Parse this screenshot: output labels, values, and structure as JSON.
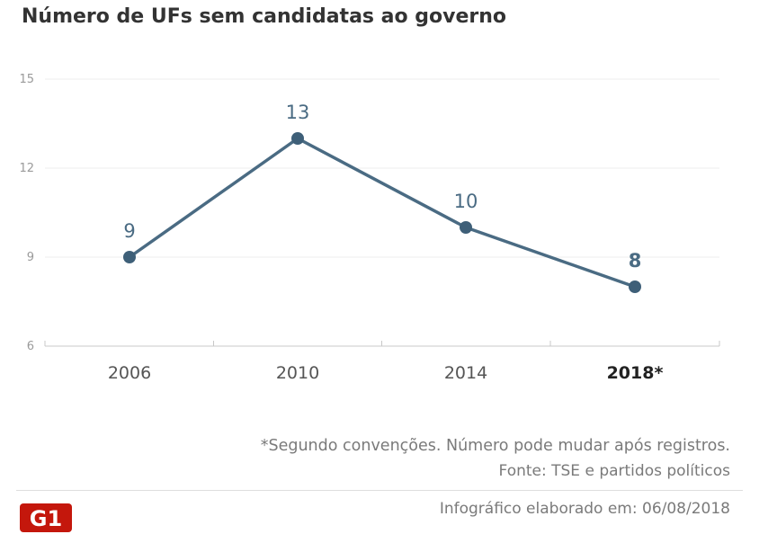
{
  "title": "Número de UFs sem candidatas ao governo",
  "chart_data": {
    "type": "line",
    "x": [
      "2006",
      "2010",
      "2014",
      "2018*"
    ],
    "highlight_x": "2018*",
    "series": [
      {
        "values": [
          9,
          13,
          10,
          8
        ],
        "data_labels": [
          "9",
          "13",
          "10",
          "8"
        ]
      }
    ],
    "yticks": [
      15,
      12,
      9,
      6
    ],
    "ylim": [
      6,
      15
    ],
    "grid": true,
    "line_color": "#4a6b83",
    "marker_color": "#3e5f78",
    "label_color": "#4a6b83"
  },
  "footnote": "*Segundo convenções. Número pode mudar após registros.",
  "source": "Fonte: TSE e partidos políticos",
  "date_note": "Infográfico elaborado em: 06/08/2018",
  "logo": {
    "text": "G1",
    "color": "#c4170c"
  }
}
